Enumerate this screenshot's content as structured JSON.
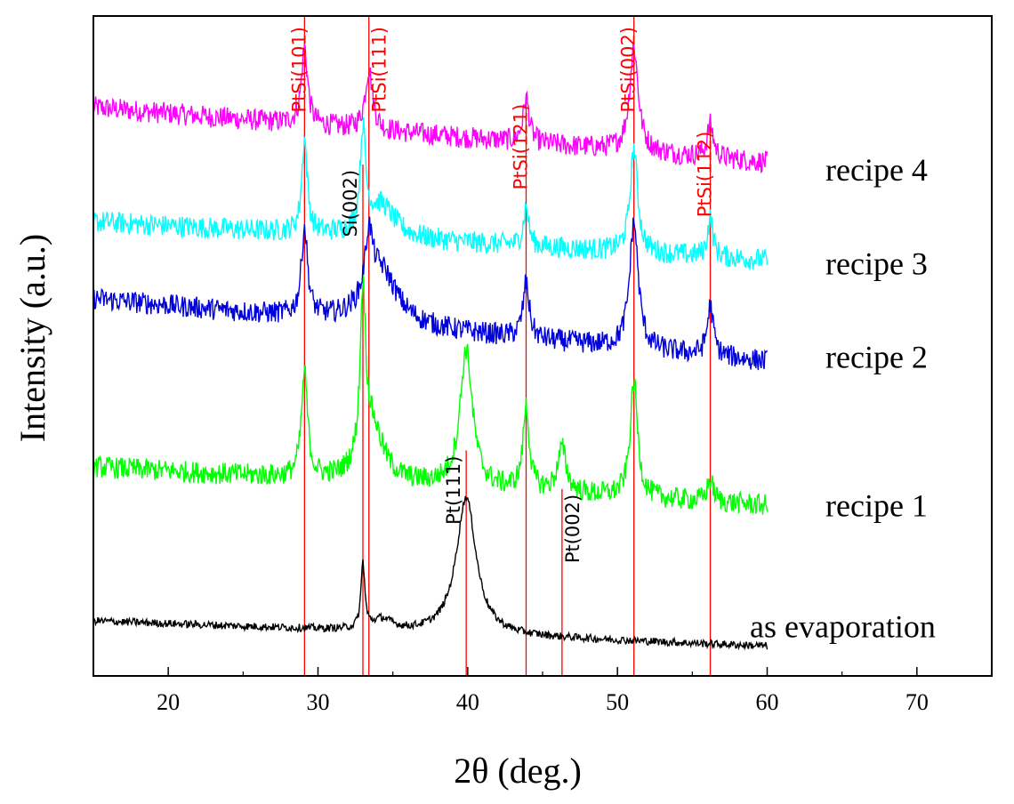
{
  "chart_data": {
    "type": "line",
    "title": "",
    "xlabel": "2θ (deg.)",
    "ylabel": "Intensity (a.u.)",
    "xlim": [
      15,
      75
    ],
    "ylim": [
      0,
      6
    ],
    "x_ticks": [
      20,
      30,
      40,
      50,
      60,
      70
    ],
    "y_ticks": [],
    "grid": false,
    "legend": "none",
    "colors": {
      "recipe4": "#ff00ff",
      "recipe3": "#00ffff",
      "recipe2": "#0000dd",
      "recipe1": "#00ff00",
      "as_evaporation": "#000000",
      "reference_line": "#ff0000"
    },
    "x_range_data": [
      15,
      60
    ],
    "series": [
      {
        "name": "recipe 4",
        "color": "#ff00ff",
        "baseline_start": 5.17,
        "baseline_end": 4.67,
        "noise": 0.1,
        "peaks": [
          {
            "x": 29.1,
            "h": 0.7,
            "w": 0.25
          },
          {
            "x": 33.4,
            "h": 0.55,
            "w": 0.3
          },
          {
            "x": 43.9,
            "h": 0.4,
            "w": 0.25
          },
          {
            "x": 51.1,
            "h": 0.95,
            "w": 0.35
          },
          {
            "x": 56.2,
            "h": 0.3,
            "w": 0.25
          }
        ]
      },
      {
        "name": "recipe 3",
        "color": "#00ffff",
        "baseline_start": 4.13,
        "baseline_end": 3.78,
        "noise": 0.1,
        "peaks": [
          {
            "x": 29.1,
            "h": 0.85,
            "w": 0.22
          },
          {
            "x": 33.0,
            "h": 0.9,
            "w": 0.22
          },
          {
            "x": 34.2,
            "h": 0.3,
            "w": 1.1
          },
          {
            "x": 43.9,
            "h": 0.35,
            "w": 0.22
          },
          {
            "x": 51.1,
            "h": 0.95,
            "w": 0.3
          },
          {
            "x": 56.2,
            "h": 0.35,
            "w": 0.22
          }
        ]
      },
      {
        "name": "recipe 2",
        "color": "#0000dd",
        "baseline_start": 3.43,
        "baseline_end": 2.86,
        "noise": 0.1,
        "peaks": [
          {
            "x": 29.1,
            "h": 0.8,
            "w": 0.25
          },
          {
            "x": 33.4,
            "h": 0.55,
            "w": 0.3
          },
          {
            "x": 34.2,
            "h": 0.5,
            "w": 1.3
          },
          {
            "x": 43.9,
            "h": 0.5,
            "w": 0.25
          },
          {
            "x": 51.1,
            "h": 1.15,
            "w": 0.35
          },
          {
            "x": 56.2,
            "h": 0.45,
            "w": 0.25
          }
        ]
      },
      {
        "name": "recipe 1",
        "color": "#00ff00",
        "baseline_start": 1.9,
        "baseline_end": 1.55,
        "noise": 0.1,
        "peaks": [
          {
            "x": 29.1,
            "h": 0.95,
            "w": 0.25
          },
          {
            "x": 33.0,
            "h": 1.5,
            "w": 0.22
          },
          {
            "x": 33.6,
            "h": 0.5,
            "w": 0.9
          },
          {
            "x": 39.9,
            "h": 1.25,
            "w": 0.5
          },
          {
            "x": 43.9,
            "h": 0.75,
            "w": 0.25
          },
          {
            "x": 46.3,
            "h": 0.4,
            "w": 0.35
          },
          {
            "x": 51.1,
            "h": 1.05,
            "w": 0.3
          },
          {
            "x": 56.2,
            "h": 0.2,
            "w": 0.25
          }
        ]
      },
      {
        "name": "as evaporation",
        "color": "#000000",
        "baseline_start": 0.5,
        "baseline_end": 0.27,
        "noise": 0.035,
        "peaks": [
          {
            "x": 33.0,
            "h": 0.6,
            "w": 0.15
          },
          {
            "x": 34.3,
            "h": 0.1,
            "w": 0.8
          },
          {
            "x": 39.9,
            "h": 1.25,
            "w": 0.8
          }
        ]
      }
    ],
    "series_labels": [
      {
        "text": "recipe 4",
        "series": "recipe 4"
      },
      {
        "text": "recipe 3",
        "series": "recipe 3"
      },
      {
        "text": "recipe 2",
        "series": "recipe 2"
      },
      {
        "text": "recipe 1",
        "series": "recipe 1"
      },
      {
        "text": "as evaporation",
        "series": "as evaporation"
      }
    ],
    "reference_lines": [
      {
        "label": "PtSi(101)",
        "x": 29.1,
        "color": "#ff0000",
        "label_color": "#ff0000",
        "y_bottom": 0.0,
        "y_top": 6.0
      },
      {
        "label": "Si(002)",
        "x": 33.0,
        "color": "#ff0000",
        "label_color": "#000000",
        "y_bottom": 0.0,
        "y_top": 4.65
      },
      {
        "label": "PtSi(111)",
        "x": 33.4,
        "color": "#ff0000",
        "label_color": "#ff0000",
        "y_bottom": 0.0,
        "y_top": 6.0
      },
      {
        "label": "Pt(111)",
        "x": 39.9,
        "color": "#ff0000",
        "label_color": "#000000",
        "y_bottom": 0.0,
        "y_top": 2.05
      },
      {
        "label": "PtSi(121)",
        "x": 43.9,
        "color": "#ff0000",
        "label_color": "#ff0000",
        "y_bottom": 0.0,
        "y_top": 5.25
      },
      {
        "label": "Pt(002)",
        "x": 46.3,
        "color": "#ff0000",
        "label_color": "#000000",
        "y_bottom": 0.0,
        "y_top": 1.7
      },
      {
        "label": "PtSi(002)",
        "x": 51.1,
        "color": "#ff0000",
        "label_color": "#ff0000",
        "y_bottom": 0.0,
        "y_top": 6.0
      },
      {
        "label": "PtSi(112)",
        "x": 56.2,
        "color": "#ff0000",
        "label_color": "#ff0000",
        "y_bottom": 0.0,
        "y_top": 5.0
      }
    ]
  }
}
